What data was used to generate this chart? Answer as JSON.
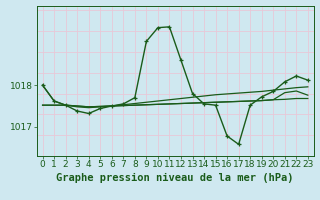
{
  "background_color": "#cfe8f0",
  "plot_bg_color": "#cfe8f0",
  "grid_v_color": "#e8c8d8",
  "grid_h_color": "#e8c8d8",
  "line_color": "#1a5c1a",
  "title": "Graphe pression niveau de la mer (hPa)",
  "xlim": [
    -0.5,
    23.5
  ],
  "ylim": [
    1016.3,
    1019.9
  ],
  "ytick_positions": [
    1017.0,
    1018.0
  ],
  "ytick_labels": [
    "1017",
    "1018"
  ],
  "xticks": [
    0,
    1,
    2,
    3,
    4,
    5,
    6,
    7,
    8,
    9,
    10,
    11,
    12,
    13,
    14,
    15,
    16,
    17,
    18,
    19,
    20,
    21,
    22,
    23
  ],
  "s1": [
    1018.0,
    1017.62,
    1017.52,
    1017.48,
    1017.46,
    1017.48,
    1017.5,
    1017.53,
    1017.56,
    1017.59,
    1017.62,
    1017.65,
    1017.68,
    1017.71,
    1017.74,
    1017.77,
    1017.79,
    1017.81,
    1017.83,
    1017.85,
    1017.88,
    1017.91,
    1017.94,
    1017.96
  ],
  "s2": [
    1018.0,
    1017.62,
    1017.52,
    1017.38,
    1017.32,
    1017.44,
    1017.5,
    1017.55,
    1017.7,
    1019.05,
    1019.38,
    1019.4,
    1018.6,
    1017.8,
    1017.55,
    1017.52,
    1016.78,
    1016.58,
    1017.52,
    1017.72,
    1017.85,
    1018.08,
    1018.22,
    1018.12
  ],
  "s3": [
    1017.52,
    1017.52,
    1017.52,
    1017.5,
    1017.48,
    1017.49,
    1017.5,
    1017.51,
    1017.52,
    1017.53,
    1017.54,
    1017.55,
    1017.56,
    1017.57,
    1017.58,
    1017.59,
    1017.6,
    1017.61,
    1017.62,
    1017.63,
    1017.65,
    1017.66,
    1017.68,
    1017.68
  ],
  "s4": [
    1017.52,
    1017.52,
    1017.52,
    1017.5,
    1017.48,
    1017.49,
    1017.5,
    1017.51,
    1017.52,
    1017.53,
    1017.54,
    1017.55,
    1017.56,
    1017.57,
    1017.58,
    1017.59,
    1017.6,
    1017.61,
    1017.62,
    1017.63,
    1017.65,
    1017.82,
    1017.86,
    1017.76
  ],
  "title_fontsize": 7.5,
  "tick_fontsize": 6.5
}
